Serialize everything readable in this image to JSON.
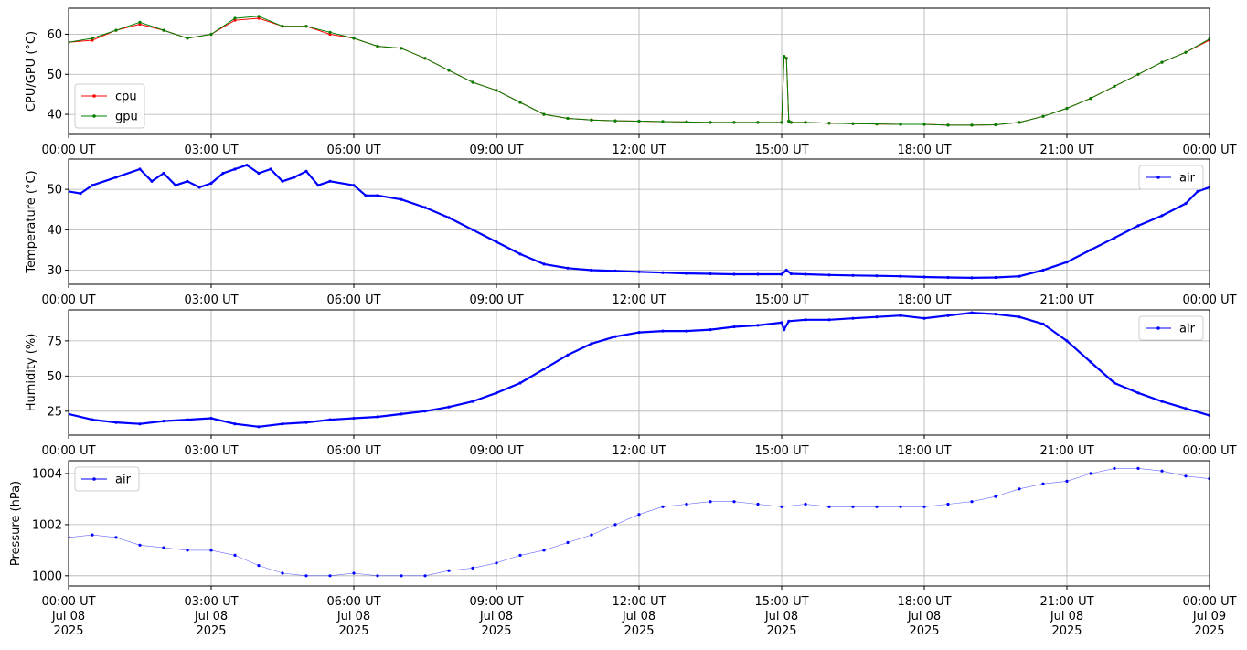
{
  "chart_data": [
    {
      "type": "line",
      "id": "cpu-gpu",
      "xlabel": "",
      "ylabel": "CPU/GPU (°C)",
      "x_tick_labels": [
        "00:00 UT",
        "03:00 UT",
        "06:00 UT",
        "09:00 UT",
        "12:00 UT",
        "15:00 UT",
        "18:00 UT",
        "21:00 UT",
        "00:00 UT"
      ],
      "xlim_hours": [
        0,
        24
      ],
      "ylim": [
        35,
        66.5
      ],
      "yticks": [
        40,
        50,
        60
      ],
      "grid": true,
      "legend": "lower-left",
      "series": [
        {
          "name": "cpu",
          "color": "#ff0000",
          "x": [
            0,
            0.5,
            1,
            1.5,
            2,
            2.5,
            3,
            3.5,
            4,
            4.5,
            5,
            5.5,
            6,
            6.5,
            7,
            7.5,
            8,
            8.5,
            9,
            9.5,
            10,
            10.5,
            11,
            11.5,
            12,
            12.5,
            13,
            13.5,
            14,
            14.5,
            15,
            15.05,
            15.1,
            15.15,
            15.2,
            15.5,
            16,
            16.5,
            17,
            17.5,
            18,
            18.5,
            19,
            19.5,
            20,
            20.5,
            21,
            21.5,
            22,
            22.5,
            23,
            23.5,
            24
          ],
          "values": [
            58,
            58.5,
            61,
            62.5,
            61,
            59,
            60,
            63.5,
            64,
            62,
            62,
            60,
            59,
            57,
            56.5,
            54,
            51,
            48,
            46,
            43,
            40,
            39,
            38.6,
            38.4,
            38.3,
            38.2,
            38.1,
            38,
            38,
            38,
            38,
            54.5,
            54,
            38.3,
            38,
            38,
            37.8,
            37.7,
            37.6,
            37.5,
            37.5,
            37.3,
            37.3,
            37.4,
            38,
            39.5,
            41.5,
            44,
            47,
            50,
            53,
            55.5,
            58.5
          ]
        },
        {
          "name": "gpu",
          "color": "#008000",
          "x": [
            0,
            0.5,
            1,
            1.5,
            2,
            2.5,
            3,
            3.5,
            4,
            4.5,
            5,
            5.5,
            6,
            6.5,
            7,
            7.5,
            8,
            8.5,
            9,
            9.5,
            10,
            10.5,
            11,
            11.5,
            12,
            12.5,
            13,
            13.5,
            14,
            14.5,
            15,
            15.05,
            15.1,
            15.15,
            15.2,
            15.5,
            16,
            16.5,
            17,
            17.5,
            18,
            18.5,
            19,
            19.5,
            20,
            20.5,
            21,
            21.5,
            22,
            22.5,
            23,
            23.5,
            24
          ],
          "values": [
            58,
            59,
            61,
            63,
            61,
            59,
            60,
            64,
            64.5,
            62,
            62,
            60.5,
            59,
            57,
            56.5,
            54,
            51,
            48,
            46,
            43,
            40,
            39,
            38.6,
            38.4,
            38.3,
            38.2,
            38.1,
            38,
            38,
            38,
            38,
            54.5,
            54,
            38.3,
            38,
            38,
            37.8,
            37.7,
            37.6,
            37.5,
            37.5,
            37.3,
            37.3,
            37.4,
            38,
            39.5,
            41.5,
            44,
            47,
            50,
            53,
            55.5,
            58.8
          ]
        }
      ]
    },
    {
      "type": "line",
      "id": "temperature",
      "xlabel": "",
      "ylabel": "Temperature (°C)",
      "x_tick_labels": [
        "00:00 UT",
        "03:00 UT",
        "06:00 UT",
        "09:00 UT",
        "12:00 UT",
        "15:00 UT",
        "18:00 UT",
        "21:00 UT",
        "00:00 UT"
      ],
      "xlim_hours": [
        0,
        24
      ],
      "ylim": [
        26.5,
        57.5
      ],
      "yticks": [
        30,
        40,
        50
      ],
      "grid": true,
      "legend": "upper-right",
      "series": [
        {
          "name": "air",
          "color": "#0000ff",
          "x": [
            0,
            0.25,
            0.5,
            1,
            1.5,
            1.75,
            2,
            2.25,
            2.5,
            2.75,
            3,
            3.25,
            3.5,
            3.75,
            4,
            4.25,
            4.5,
            4.75,
            5,
            5.25,
            5.5,
            6,
            6.25,
            6.5,
            7,
            7.5,
            8,
            8.5,
            9,
            9.5,
            10,
            10.5,
            11,
            11.5,
            12,
            12.5,
            13,
            13.5,
            14,
            14.5,
            15,
            15.1,
            15.2,
            15.5,
            16,
            16.5,
            17,
            17.5,
            18,
            18.5,
            19,
            19.5,
            20,
            20.5,
            21,
            21.5,
            22,
            22.5,
            23,
            23.5,
            23.75,
            24
          ],
          "values": [
            49.5,
            49,
            51,
            53,
            55,
            52,
            54,
            51,
            52,
            50.5,
            51.5,
            54,
            55,
            56,
            54,
            55,
            52,
            53,
            54.5,
            51,
            52,
            51,
            48.5,
            48.5,
            47.5,
            45.5,
            43,
            40,
            37,
            34,
            31.5,
            30.5,
            30,
            29.8,
            29.6,
            29.4,
            29.2,
            29.1,
            29,
            29,
            29,
            30,
            29.1,
            29,
            28.8,
            28.7,
            28.6,
            28.5,
            28.3,
            28.2,
            28.1,
            28.2,
            28.5,
            30,
            32,
            35,
            38,
            41,
            43.5,
            46.5,
            49.5,
            50.5
          ]
        }
      ]
    },
    {
      "type": "line",
      "id": "humidity",
      "xlabel": "",
      "ylabel": "Humidity (%)",
      "x_tick_labels": [
        "00:00 UT",
        "03:00 UT",
        "06:00 UT",
        "09:00 UT",
        "12:00 UT",
        "15:00 UT",
        "18:00 UT",
        "21:00 UT",
        "00:00 UT"
      ],
      "xlim_hours": [
        0,
        24
      ],
      "ylim": [
        8,
        97
      ],
      "yticks": [
        25,
        50,
        75
      ],
      "grid": true,
      "legend": "upper-right",
      "series": [
        {
          "name": "air",
          "color": "#0000ff",
          "x": [
            0,
            0.5,
            1,
            1.5,
            2,
            2.5,
            3,
            3.5,
            4,
            4.5,
            5,
            5.5,
            6,
            6.5,
            7,
            7.5,
            8,
            8.5,
            9,
            9.5,
            10,
            10.5,
            11,
            11.5,
            12,
            12.5,
            13,
            13.5,
            14,
            14.5,
            15,
            15.05,
            15.15,
            15.5,
            16,
            16.5,
            17,
            17.5,
            18,
            18.5,
            19,
            19.5,
            20,
            20.5,
            21,
            21.5,
            22,
            22.5,
            23,
            23.5,
            24
          ],
          "values": [
            23,
            19,
            17,
            16,
            18,
            19,
            20,
            16,
            14,
            16,
            17,
            19,
            20,
            21,
            23,
            25,
            28,
            32,
            38,
            45,
            55,
            65,
            73,
            78,
            81,
            82,
            82,
            83,
            85,
            86,
            88,
            83,
            89,
            90,
            90,
            91,
            92,
            93,
            91,
            93,
            95,
            94,
            92,
            87,
            75,
            60,
            45,
            38,
            32,
            27,
            22
          ]
        }
      ]
    },
    {
      "type": "scatter",
      "id": "pressure",
      "xlabel": "",
      "ylabel": "Pressure (hPa)",
      "x_tick_labels": [
        [
          "00:00 UT",
          "Jul 08",
          "2025"
        ],
        [
          "03:00 UT",
          "Jul 08",
          "2025"
        ],
        [
          "06:00 UT",
          "Jul 08",
          "2025"
        ],
        [
          "09:00 UT",
          "Jul 08",
          "2025"
        ],
        [
          "12:00 UT",
          "Jul 08",
          "2025"
        ],
        [
          "15:00 UT",
          "Jul 08",
          "2025"
        ],
        [
          "18:00 UT",
          "Jul 08",
          "2025"
        ],
        [
          "21:00 UT",
          "Jul 08",
          "2025"
        ],
        [
          "00:00 UT",
          "Jul 09",
          "2025"
        ]
      ],
      "xlim_hours": [
        0,
        24
      ],
      "ylim": [
        999.6,
        1004.5
      ],
      "yticks": [
        1000,
        1002,
        1004
      ],
      "grid": true,
      "legend": "upper-left",
      "series": [
        {
          "name": "air",
          "color": "#0000ff",
          "x": [
            0,
            0.5,
            1,
            1.5,
            2,
            2.5,
            3,
            3.5,
            4,
            4.5,
            5,
            5.5,
            6,
            6.5,
            7,
            7.5,
            8,
            8.5,
            9,
            9.5,
            10,
            10.5,
            11,
            11.5,
            12,
            12.5,
            13,
            13.5,
            14,
            14.5,
            15,
            15.5,
            16,
            16.5,
            17,
            17.5,
            18,
            18.5,
            19,
            19.5,
            20,
            20.5,
            21,
            21.5,
            22,
            22.5,
            23,
            23.5,
            24
          ],
          "values": [
            1001.5,
            1001.6,
            1001.5,
            1001.2,
            1001.1,
            1001.0,
            1001.0,
            1000.8,
            1000.4,
            1000.1,
            1000.0,
            1000.0,
            1000.1,
            1000.0,
            1000.0,
            1000.0,
            1000.2,
            1000.3,
            1000.5,
            1000.8,
            1001.0,
            1001.3,
            1001.6,
            1002.0,
            1002.4,
            1002.7,
            1002.8,
            1002.9,
            1002.9,
            1002.8,
            1002.7,
            1002.8,
            1002.7,
            1002.7,
            1002.7,
            1002.7,
            1002.7,
            1002.8,
            1002.9,
            1003.1,
            1003.4,
            1003.6,
            1003.7,
            1004.0,
            1004.2,
            1004.2,
            1004.1,
            1003.9,
            1003.8
          ]
        }
      ]
    }
  ]
}
